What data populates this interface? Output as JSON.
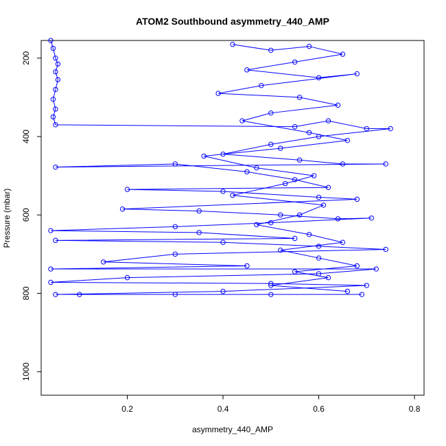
{
  "chart_data": {
    "type": "scatter",
    "title": "ATOM2 Southbound asymmetry_440_AMP",
    "xlabel": "asymmetry_440_AMP",
    "ylabel": "Pressure (mbar)",
    "xlim": [
      0.02,
      0.82
    ],
    "ylim": [
      1060,
      155
    ],
    "y_reversed": true,
    "x_ticks": [
      0.2,
      0.4,
      0.6,
      0.8
    ],
    "x_tick_labels": [
      "0.2",
      "0.4",
      "0.6",
      "0.8"
    ],
    "y_ticks": [
      200,
      400,
      600,
      800,
      1000
    ],
    "y_tick_labels": [
      "200",
      "400",
      "600",
      "800",
      "1000"
    ],
    "grid": false,
    "marker": "open-circle",
    "connected": true,
    "series": [
      {
        "color": "#0000ff",
        "points": [
          [
            0.04,
            155
          ],
          [
            0.045,
            175
          ],
          [
            0.05,
            200
          ],
          [
            0.055,
            215
          ],
          [
            0.05,
            235
          ],
          [
            0.055,
            255
          ],
          [
            0.05,
            280
          ],
          [
            0.045,
            305
          ],
          [
            0.05,
            330
          ],
          [
            0.045,
            350
          ],
          [
            0.05,
            370
          ],
          [
            0.55,
            375
          ],
          [
            0.62,
            360
          ],
          [
            0.7,
            380
          ],
          [
            0.75,
            380
          ],
          [
            0.6,
            400
          ],
          [
            0.5,
            420
          ],
          [
            0.4,
            445
          ],
          [
            0.56,
            460
          ],
          [
            0.65,
            470
          ],
          [
            0.74,
            470
          ],
          [
            0.05,
            478
          ],
          [
            0.3,
            470
          ],
          [
            0.45,
            490
          ],
          [
            0.55,
            510
          ],
          [
            0.62,
            530
          ],
          [
            0.2,
            535
          ],
          [
            0.4,
            540
          ],
          [
            0.6,
            555
          ],
          [
            0.68,
            560
          ],
          [
            0.19,
            585
          ],
          [
            0.35,
            590
          ],
          [
            0.52,
            600
          ],
          [
            0.64,
            610
          ],
          [
            0.71,
            608
          ],
          [
            0.5,
            620
          ],
          [
            0.3,
            630
          ],
          [
            0.04,
            640
          ],
          [
            0.35,
            645
          ],
          [
            0.55,
            660
          ],
          [
            0.05,
            665
          ],
          [
            0.4,
            670
          ],
          [
            0.6,
            680
          ],
          [
            0.74,
            688
          ],
          [
            0.3,
            700
          ],
          [
            0.15,
            720
          ],
          [
            0.45,
            730
          ],
          [
            0.04,
            738
          ],
          [
            0.72,
            738
          ],
          [
            0.6,
            750
          ],
          [
            0.2,
            760
          ],
          [
            0.04,
            772
          ],
          [
            0.5,
            775
          ],
          [
            0.7,
            780
          ],
          [
            0.4,
            795
          ],
          [
            0.05,
            803
          ],
          [
            0.1,
            803
          ],
          [
            0.3,
            803
          ],
          [
            0.5,
            803
          ],
          [
            0.69,
            803
          ]
        ]
      },
      {
        "color": "#0000ff",
        "points": [
          [
            0.42,
            165
          ],
          [
            0.5,
            180
          ],
          [
            0.58,
            170
          ],
          [
            0.65,
            190
          ],
          [
            0.55,
            210
          ],
          [
            0.45,
            230
          ],
          [
            0.6,
            250
          ],
          [
            0.68,
            240
          ],
          [
            0.48,
            270
          ],
          [
            0.39,
            290
          ],
          [
            0.56,
            300
          ],
          [
            0.64,
            320
          ],
          [
            0.5,
            340
          ],
          [
            0.44,
            360
          ],
          [
            0.58,
            390
          ],
          [
            0.66,
            410
          ],
          [
            0.52,
            430
          ],
          [
            0.36,
            450
          ],
          [
            0.47,
            480
          ],
          [
            0.59,
            500
          ],
          [
            0.53,
            520
          ],
          [
            0.42,
            550
          ],
          [
            0.61,
            575
          ],
          [
            0.56,
            600
          ],
          [
            0.47,
            625
          ],
          [
            0.58,
            650
          ],
          [
            0.65,
            670
          ],
          [
            0.52,
            690
          ],
          [
            0.6,
            710
          ],
          [
            0.68,
            730
          ],
          [
            0.55,
            745
          ],
          [
            0.62,
            760
          ],
          [
            0.5,
            780
          ],
          [
            0.66,
            795
          ]
        ]
      }
    ]
  }
}
